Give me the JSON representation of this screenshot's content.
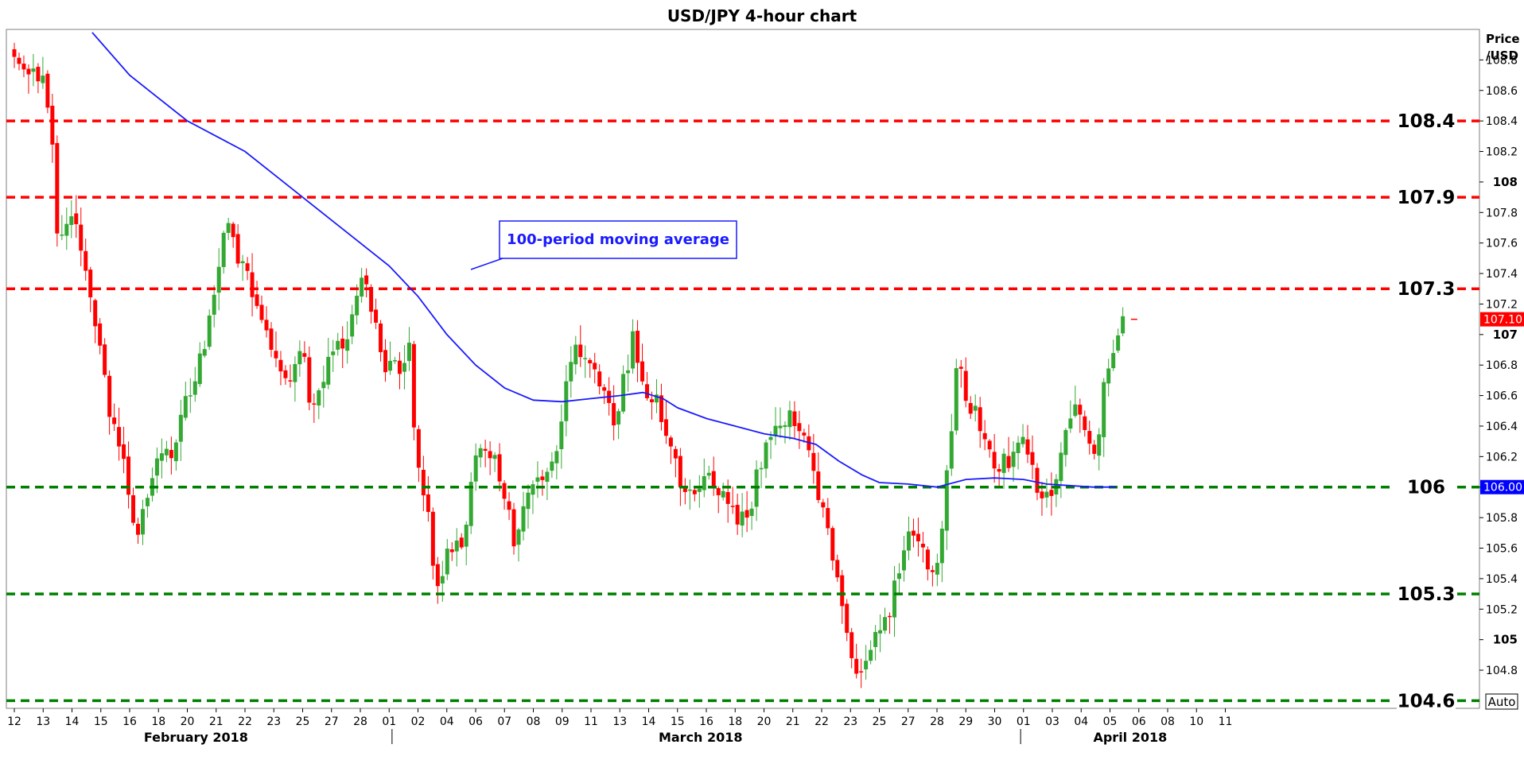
{
  "chart_data": {
    "type": "candlestick",
    "title": "USD/JPY 4-hour chart",
    "ylabel": "Price\n/USD",
    "ylim": [
      104.55,
      109.0
    ],
    "y_ticks": [
      "104.8",
      "105",
      "105.2",
      "105.4",
      "105.6",
      "105.8",
      "106",
      "106.2",
      "106.4",
      "106.6",
      "106.8",
      "107",
      "107.2",
      "107.4",
      "107.6",
      "107.8",
      "108",
      "108.2",
      "108.4",
      "108.6",
      "108.8"
    ],
    "x_tick_labels": [
      "12",
      "13",
      "14",
      "15",
      "16",
      "18",
      "20",
      "21",
      "22",
      "23",
      "25",
      "27",
      "28",
      "01",
      "02",
      "04",
      "06",
      "07",
      "08",
      "09",
      "11",
      "13",
      "14",
      "15",
      "16",
      "18",
      "20",
      "21",
      "22",
      "23",
      "25",
      "27",
      "28",
      "29",
      "30",
      "01",
      "03",
      "04",
      "05",
      "06",
      "08",
      "10",
      "11"
    ],
    "x_tick_positions": [
      0,
      1,
      2,
      3,
      4,
      5,
      6,
      7,
      8,
      9,
      10,
      11,
      12,
      13,
      14,
      15,
      16,
      17,
      18,
      19,
      20,
      21,
      22,
      23,
      24,
      25,
      26,
      27,
      28,
      29,
      30,
      31,
      32,
      33,
      34,
      35,
      36,
      37,
      38,
      39,
      40,
      41,
      42
    ],
    "month_labels": [
      {
        "text": "February 2018",
        "at": 6.3
      },
      {
        "text": "March 2018",
        "at": 23.8
      },
      {
        "text": "April 2018",
        "at": 38.7
      }
    ],
    "month_separators": [
      13.1,
      34.9
    ],
    "series": [
      {
        "name": "USD/JPY",
        "anchors": [
          [
            0.0,
            108.85
          ],
          [
            0.6,
            108.7
          ],
          [
            1.1,
            108.65
          ],
          [
            1.3,
            108.3
          ],
          [
            1.5,
            107.65
          ],
          [
            2.1,
            107.75
          ],
          [
            2.6,
            107.3
          ],
          [
            3.0,
            106.9
          ],
          [
            3.4,
            106.4
          ],
          [
            3.9,
            106.05
          ],
          [
            4.2,
            105.7
          ],
          [
            4.6,
            105.95
          ],
          [
            5.0,
            106.3
          ],
          [
            5.5,
            106.2
          ],
          [
            6.0,
            106.6
          ],
          [
            6.5,
            106.85
          ],
          [
            7.0,
            107.35
          ],
          [
            7.4,
            107.8
          ],
          [
            7.8,
            107.45
          ],
          [
            8.2,
            107.35
          ],
          [
            8.6,
            107.05
          ],
          [
            9.0,
            106.85
          ],
          [
            9.5,
            106.7
          ],
          [
            10.0,
            106.95
          ],
          [
            10.3,
            106.5
          ],
          [
            10.8,
            106.8
          ],
          [
            11.5,
            107.0
          ],
          [
            11.9,
            107.3
          ],
          [
            12.2,
            107.35
          ],
          [
            12.5,
            107.05
          ],
          [
            12.9,
            106.75
          ],
          [
            13.4,
            106.8
          ],
          [
            13.7,
            106.9
          ],
          [
            13.9,
            106.2
          ],
          [
            14.3,
            105.9
          ],
          [
            14.6,
            105.35
          ],
          [
            15.0,
            105.55
          ],
          [
            15.5,
            105.6
          ],
          [
            16.0,
            106.2
          ],
          [
            16.6,
            106.2
          ],
          [
            17.0,
            105.95
          ],
          [
            17.3,
            105.65
          ],
          [
            17.8,
            105.9
          ],
          [
            18.3,
            106.05
          ],
          [
            18.8,
            106.2
          ],
          [
            19.2,
            106.8
          ],
          [
            19.6,
            106.9
          ],
          [
            20.0,
            106.8
          ],
          [
            20.4,
            106.6
          ],
          [
            20.8,
            106.45
          ],
          [
            21.2,
            106.75
          ],
          [
            21.5,
            107.0
          ],
          [
            21.8,
            106.65
          ],
          [
            22.3,
            106.55
          ],
          [
            22.8,
            106.3
          ],
          [
            23.2,
            105.95
          ],
          [
            23.7,
            105.95
          ],
          [
            24.0,
            106.2
          ],
          [
            24.4,
            105.95
          ],
          [
            24.9,
            105.85
          ],
          [
            25.4,
            105.75
          ],
          [
            25.8,
            106.1
          ],
          [
            26.2,
            106.35
          ],
          [
            26.6,
            106.45
          ],
          [
            27.0,
            106.45
          ],
          [
            27.4,
            106.3
          ],
          [
            27.8,
            106.0
          ],
          [
            28.2,
            105.7
          ],
          [
            28.6,
            105.35
          ],
          [
            29.0,
            104.9
          ],
          [
            29.4,
            104.75
          ],
          [
            29.9,
            105.05
          ],
          [
            30.4,
            105.2
          ],
          [
            30.8,
            105.6
          ],
          [
            31.2,
            105.75
          ],
          [
            31.6,
            105.55
          ],
          [
            32.0,
            105.45
          ],
          [
            32.4,
            106.2
          ],
          [
            32.7,
            106.85
          ],
          [
            33.0,
            106.6
          ],
          [
            33.4,
            106.45
          ],
          [
            33.8,
            106.2
          ],
          [
            34.2,
            106.15
          ],
          [
            34.6,
            106.2
          ],
          [
            35.0,
            106.3
          ],
          [
            35.4,
            106.05
          ],
          [
            35.8,
            105.9
          ],
          [
            36.2,
            106.15
          ],
          [
            36.6,
            106.45
          ],
          [
            37.0,
            106.5
          ],
          [
            37.3,
            106.3
          ],
          [
            37.5,
            106.15
          ],
          [
            37.8,
            106.7
          ],
          [
            38.1,
            106.85
          ],
          [
            38.3,
            106.95
          ],
          [
            38.45,
            107.1
          ]
        ]
      },
      {
        "name": "100-period moving average",
        "points": [
          [
            2.7,
            108.98
          ],
          [
            4.0,
            108.7
          ],
          [
            5.0,
            108.55
          ],
          [
            6.0,
            108.4
          ],
          [
            7.0,
            108.3
          ],
          [
            8.0,
            108.2
          ],
          [
            9.0,
            108.05
          ],
          [
            10.0,
            107.9
          ],
          [
            11.0,
            107.75
          ],
          [
            12.0,
            107.6
          ],
          [
            13.0,
            107.45
          ],
          [
            14.0,
            107.25
          ],
          [
            15.0,
            107.0
          ],
          [
            16.0,
            106.8
          ],
          [
            17.0,
            106.65
          ],
          [
            18.0,
            106.57
          ],
          [
            19.0,
            106.56
          ],
          [
            20.0,
            106.58
          ],
          [
            21.0,
            106.6
          ],
          [
            21.8,
            106.62
          ],
          [
            22.5,
            106.58
          ],
          [
            23.0,
            106.52
          ],
          [
            24.0,
            106.45
          ],
          [
            25.0,
            106.4
          ],
          [
            26.0,
            106.35
          ],
          [
            27.0,
            106.32
          ],
          [
            27.8,
            106.28
          ],
          [
            28.6,
            106.17
          ],
          [
            29.4,
            106.08
          ],
          [
            30.0,
            106.03
          ],
          [
            31.0,
            106.02
          ],
          [
            32.0,
            106.0
          ],
          [
            33.0,
            106.05
          ],
          [
            34.0,
            106.06
          ],
          [
            35.0,
            106.05
          ],
          [
            35.8,
            106.02
          ],
          [
            36.6,
            106.01
          ],
          [
            37.4,
            106.0
          ],
          [
            38.2,
            106.0
          ]
        ]
      }
    ],
    "levels": [
      {
        "value": 108.4,
        "label": "108.4",
        "style": "resistance"
      },
      {
        "value": 107.9,
        "label": "107.9",
        "style": "resistance"
      },
      {
        "value": 107.3,
        "label": "107.3",
        "style": "resistance"
      },
      {
        "value": 106.0,
        "label": "106",
        "style": "support"
      },
      {
        "value": 105.3,
        "label": "105.3",
        "style": "support"
      },
      {
        "value": 104.6,
        "label": "104.6",
        "style": "support"
      }
    ],
    "annotation": "100-period moving average",
    "price_tags": [
      {
        "value": 107.1,
        "label": "107.10",
        "color": "#ff0000"
      },
      {
        "value": 106.0,
        "label": "106.00",
        "color": "#0000ff"
      }
    ],
    "scale_mode": "Auto",
    "colors": {
      "up": "#33a833",
      "down": "#ff0000",
      "ma": "#1a1aff",
      "resistance": "#ff0000",
      "support": "#008000"
    }
  }
}
